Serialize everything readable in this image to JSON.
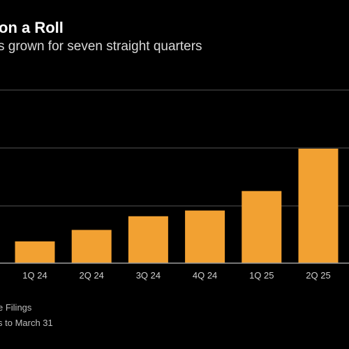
{
  "chart_data": {
    "type": "bar",
    "title": "on a Roll",
    "subtitle": "s grown for seven straight quarters",
    "categories": [
      "1Q 24",
      "2Q 24",
      "3Q 24",
      "4Q 24",
      "1Q 25",
      "2Q 25"
    ],
    "values": [
      19,
      29,
      41,
      46,
      63,
      100
    ],
    "grid": true,
    "colors": {
      "bar": "#f2a132",
      "grid": "#555555",
      "axis": "#9a9a9a",
      "text": "#cfcfcf",
      "background": "#000000"
    }
  },
  "footnotes": {
    "source": "e Filings",
    "note": "s to March 31"
  }
}
